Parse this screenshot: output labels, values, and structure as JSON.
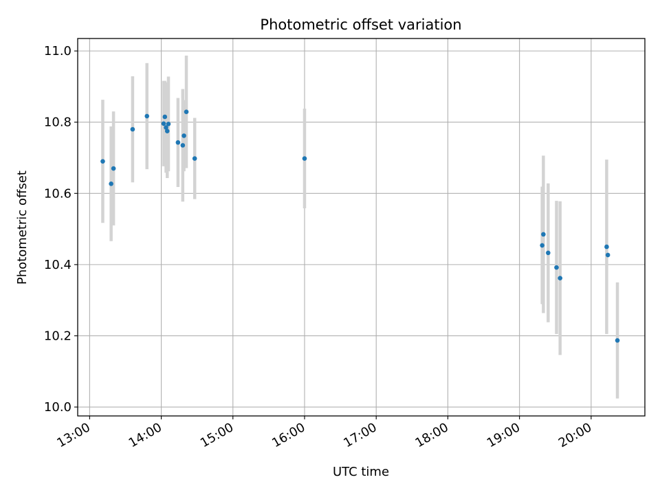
{
  "chart_data": {
    "type": "scatter",
    "title": "Photometric offset variation",
    "xlabel": "UTC time",
    "ylabel": "Photometric offset",
    "x_ticks": [
      "13:00",
      "14:00",
      "15:00",
      "16:00",
      "17:00",
      "18:00",
      "19:00",
      "20:00"
    ],
    "y_ticks": [
      "10.0",
      "10.2",
      "10.4",
      "10.6",
      "10.8",
      "11.0"
    ],
    "xlim": [
      "12:50",
      "20:45"
    ],
    "ylim": [
      9.975,
      11.035
    ],
    "grid": true,
    "point_color": "#1f77b4",
    "errorbar_color": "#d3d3d3",
    "points": [
      {
        "t": "13:11",
        "y": 10.69,
        "err": 0.173
      },
      {
        "t": "13:18",
        "y": 10.627,
        "err": 0.161
      },
      {
        "t": "13:20",
        "y": 10.67,
        "err": 0.16
      },
      {
        "t": "13:36",
        "y": 10.78,
        "err": 0.149
      },
      {
        "t": "13:48",
        "y": 10.817,
        "err": 0.149
      },
      {
        "t": "14:02",
        "y": 10.796,
        "err": 0.12
      },
      {
        "t": "14:03",
        "y": 10.815,
        "err": 0.101
      },
      {
        "t": "14:04",
        "y": 10.785,
        "err": 0.127
      },
      {
        "t": "14:05",
        "y": 10.775,
        "err": 0.132
      },
      {
        "t": "14:06",
        "y": 10.795,
        "err": 0.133
      },
      {
        "t": "14:14",
        "y": 10.743,
        "err": 0.125
      },
      {
        "t": "14:18",
        "y": 10.735,
        "err": 0.158
      },
      {
        "t": "14:19",
        "y": 10.762,
        "err": 0.1
      },
      {
        "t": "14:21",
        "y": 10.829,
        "err": 0.158
      },
      {
        "t": "14:28",
        "y": 10.698,
        "err": 0.114
      },
      {
        "t": "16:00",
        "y": 10.698,
        "err": 0.14
      },
      {
        "t": "19:19",
        "y": 10.454,
        "err": 0.165
      },
      {
        "t": "19:20",
        "y": 10.485,
        "err": 0.221
      },
      {
        "t": "19:24",
        "y": 10.433,
        "err": 0.195
      },
      {
        "t": "19:31",
        "y": 10.392,
        "err": 0.187
      },
      {
        "t": "19:34",
        "y": 10.362,
        "err": 0.216
      },
      {
        "t": "20:13",
        "y": 10.45,
        "err": 0.245
      },
      {
        "t": "20:14",
        "y": 10.427,
        "err": 0.0
      },
      {
        "t": "20:22",
        "y": 10.187,
        "err": 0.163
      }
    ]
  }
}
